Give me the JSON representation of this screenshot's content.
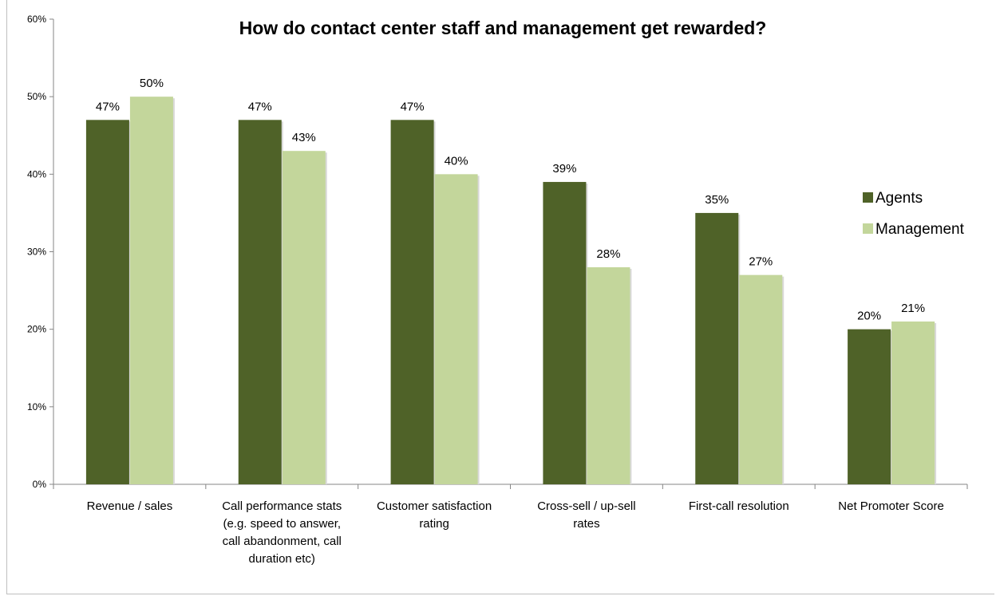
{
  "chart_data": {
    "type": "bar",
    "title": "How do contact center staff and management get rewarded?",
    "xlabel": "",
    "ylabel": "",
    "ylim": [
      0,
      60
    ],
    "yticks": [
      "0%",
      "10%",
      "20%",
      "30%",
      "40%",
      "50%",
      "60%"
    ],
    "grid": false,
    "legend_position": "right",
    "categories": [
      [
        "Revenue / sales"
      ],
      [
        "Call performance stats",
        "(e.g. speed to answer,",
        "call abandonment, call",
        "duration etc)"
      ],
      [
        "Customer satisfaction",
        "rating"
      ],
      [
        "Cross-sell / up-sell",
        "rates"
      ],
      [
        "First-call resolution"
      ],
      [
        "Net Promoter Score"
      ]
    ],
    "series": [
      {
        "name": "Agents",
        "color": "#4f6228",
        "values": [
          47,
          47,
          47,
          39,
          35,
          20
        ]
      },
      {
        "name": "Management",
        "color": "#c3d69b",
        "values": [
          50,
          43,
          40,
          28,
          27,
          21
        ]
      }
    ],
    "value_suffix": "%"
  }
}
